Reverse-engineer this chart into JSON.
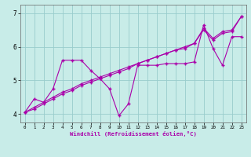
{
  "xlabel": "Windchill (Refroidissement éolien,°C)",
  "bg_color": "#c8ece8",
  "line_color": "#aa00aa",
  "grid_color": "#99cccc",
  "xlim": [
    -0.5,
    23.5
  ],
  "ylim": [
    3.75,
    7.25
  ],
  "xticks": [
    0,
    1,
    2,
    3,
    4,
    5,
    6,
    7,
    8,
    9,
    10,
    11,
    12,
    13,
    14,
    15,
    16,
    17,
    18,
    19,
    20,
    21,
    22,
    23
  ],
  "yticks": [
    4,
    5,
    6,
    7
  ],
  "x": [
    0,
    1,
    2,
    3,
    4,
    5,
    6,
    7,
    8,
    9,
    10,
    11,
    12,
    13,
    14,
    15,
    16,
    17,
    18,
    19,
    20,
    21,
    22,
    23
  ],
  "line_jagged": [
    4.05,
    4.45,
    4.35,
    4.75,
    5.6,
    5.6,
    5.6,
    5.3,
    5.05,
    4.75,
    3.95,
    4.3,
    5.45,
    5.45,
    5.45,
    5.5,
    5.5,
    5.5,
    5.55,
    6.65,
    5.95,
    5.45,
    6.3,
    6.3
  ],
  "line_trend1": [
    4.05,
    4.2,
    4.35,
    4.5,
    4.65,
    4.75,
    4.9,
    5.0,
    5.1,
    5.2,
    5.3,
    5.4,
    5.5,
    5.6,
    5.7,
    5.8,
    5.9,
    6.0,
    6.1,
    6.55,
    6.25,
    6.45,
    6.5,
    6.9
  ],
  "line_trend2": [
    4.05,
    4.15,
    4.3,
    4.45,
    4.6,
    4.7,
    4.85,
    4.95,
    5.05,
    5.15,
    5.25,
    5.35,
    5.5,
    5.6,
    5.7,
    5.8,
    5.9,
    5.95,
    6.1,
    6.5,
    6.2,
    6.4,
    6.45,
    6.9
  ]
}
